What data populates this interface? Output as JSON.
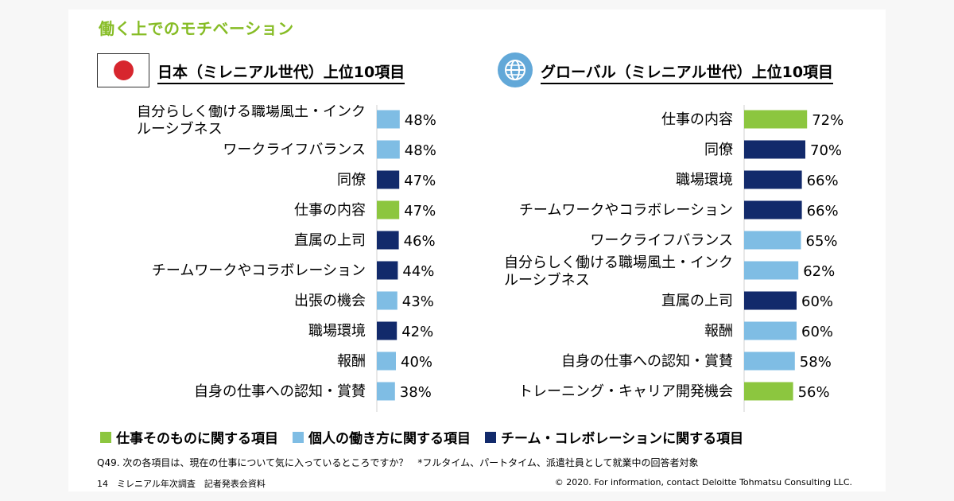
{
  "slide_title": "働く上でのモチベーション",
  "legend": [
    {
      "label": "仕事そのものに関する項目",
      "color": "#8cc63f"
    },
    {
      "label": "個人の働き方に関する項目",
      "color": "#7fbde4"
    },
    {
      "label": "チーム・コレボレーションに関する項目",
      "color": "#122a6b"
    }
  ],
  "footnote": "Q49. 次の各項目は、現在の仕事について気に入っているところですか？　*フルタイム、パートタイム、派遣社員として就業中の回答者対象",
  "footer_left": "14　ミレニアル年次調査　記者発表会資料",
  "footer_right": "© 2020. For information, contact Deloitte Tohmatsu Consulting LLC.",
  "chart_data": [
    {
      "type": "bar",
      "orientation": "horizontal",
      "title": "日本（ミレニアル世代）上位10項目",
      "categories": [
        [
          "自分らしく働ける職場風土・インク",
          "ルーシブネス"
        ],
        [
          "ワークライフバランス"
        ],
        [
          "同僚"
        ],
        [
          "仕事の内容"
        ],
        [
          "直属の上司"
        ],
        [
          "チームワークやコラボレーション"
        ],
        [
          "出張の機会"
        ],
        [
          "職場環境"
        ],
        [
          "報酬"
        ],
        [
          "自身の仕事への認知・賞賛"
        ]
      ],
      "values": [
        48,
        48,
        47,
        47,
        46,
        44,
        43,
        42,
        40,
        38
      ],
      "value_labels": [
        "48%",
        "48%",
        "47%",
        "47%",
        "46%",
        "44%",
        "43%",
        "42%",
        "40%",
        "38%"
      ],
      "groups": [
        1,
        1,
        2,
        0,
        2,
        2,
        1,
        2,
        1,
        1
      ]
    },
    {
      "type": "bar",
      "orientation": "horizontal",
      "title": "グローバル（ミレニアル世代）上位10項目",
      "categories": [
        [
          "仕事の内容"
        ],
        [
          "同僚"
        ],
        [
          "職場環境"
        ],
        [
          "チームワークやコラボレーション"
        ],
        [
          "ワークライフバランス"
        ],
        [
          "自分らしく働ける職場風土・インク",
          "ルーシブネス"
        ],
        [
          "直属の上司"
        ],
        [
          "報酬"
        ],
        [
          "自身の仕事への認知・賞賛"
        ],
        [
          "トレーニング・キャリア開発機会"
        ]
      ],
      "values": [
        72,
        70,
        66,
        66,
        65,
        62,
        60,
        60,
        58,
        56
      ],
      "value_labels": [
        "72%",
        "70%",
        "66%",
        "66%",
        "65%",
        "62%",
        "60%",
        "60%",
        "58%",
        "56%"
      ],
      "groups": [
        0,
        2,
        2,
        2,
        1,
        1,
        2,
        1,
        1,
        0
      ]
    }
  ]
}
